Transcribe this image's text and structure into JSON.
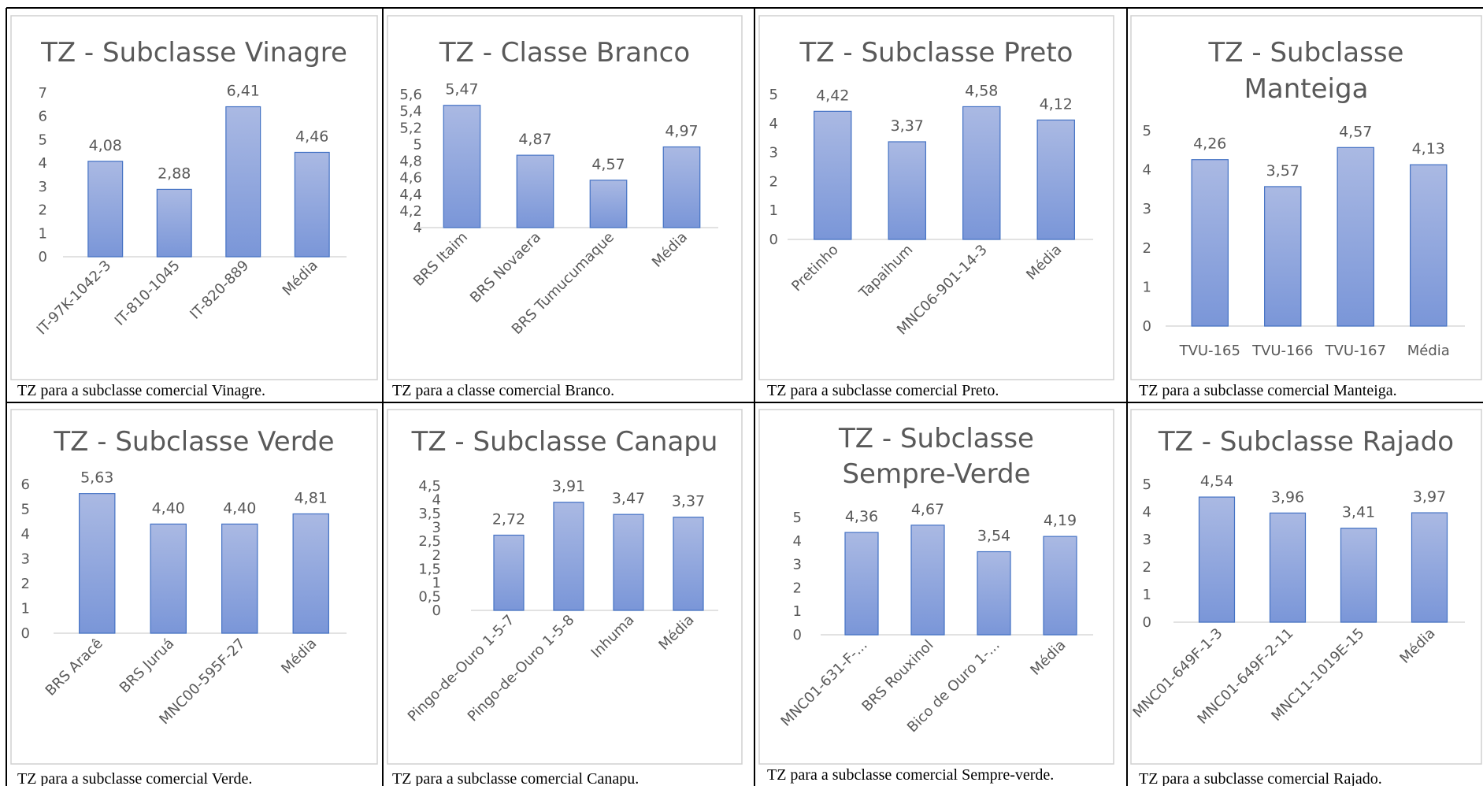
{
  "chart_data": [
    {
      "type": "bar",
      "title_lines": [
        "TZ - Subclasse Vinagre"
      ],
      "categories": [
        "IT-97K-1042-3",
        "IT-810-1045",
        "IT-820-889",
        "Média"
      ],
      "values": [
        4.08,
        2.88,
        6.41,
        4.46
      ],
      "data_labels": [
        "4,08",
        "2,88",
        "6,41",
        "4,46"
      ],
      "ylim": [
        0,
        7
      ],
      "yticks": [
        "0",
        "1",
        "2",
        "3",
        "4",
        "5",
        "6",
        "7"
      ],
      "caption": "TZ para a subclasse comercial Vinagre."
    },
    {
      "type": "bar",
      "title_lines": [
        "TZ - Classe Branco"
      ],
      "categories": [
        "BRS Itaim",
        "BRS Novaera",
        "BRS Tumucumaque",
        "Média"
      ],
      "values": [
        5.47,
        4.87,
        4.57,
        4.97
      ],
      "data_labels": [
        "5,47",
        "4,87",
        "4,57",
        "4,97"
      ],
      "ylim": [
        4,
        5.6
      ],
      "yticks": [
        "4",
        "4,2",
        "4,4",
        "4,6",
        "4,8",
        "5",
        "5,2",
        "5,4",
        "5,6"
      ],
      "caption": "TZ para a classe comercial Branco."
    },
    {
      "type": "bar",
      "title_lines": [
        "TZ - Subclasse Preto"
      ],
      "categories": [
        "Pretinho",
        "Tapaihum",
        "MNC06-901-14-3",
        "Média"
      ],
      "values": [
        4.42,
        3.37,
        4.58,
        4.12
      ],
      "data_labels": [
        "4,42",
        "3,37",
        "4,58",
        "4,12"
      ],
      "ylim": [
        0,
        5
      ],
      "yticks": [
        "0",
        "1",
        "2",
        "3",
        "4",
        "5"
      ],
      "caption": "TZ para a subclasse comercial Preto."
    },
    {
      "type": "bar",
      "title_lines": [
        "TZ - Subclasse",
        "Manteiga"
      ],
      "categories": [
        "TVU-165",
        "TVU-166",
        "TVU-167",
        "Média"
      ],
      "values": [
        4.26,
        3.57,
        4.57,
        4.13
      ],
      "data_labels": [
        "4,26",
        "3,57",
        "4,57",
        "4,13"
      ],
      "ylim": [
        0,
        5
      ],
      "yticks": [
        "0",
        "1",
        "2",
        "3",
        "4",
        "5"
      ],
      "caption": "TZ para a subclasse comercial Manteiga."
    },
    {
      "type": "bar",
      "title_lines": [
        "TZ - Subclasse Verde"
      ],
      "categories": [
        "BRS Aracê",
        "BRS Juruá",
        "MNC00-595F-27",
        "Média"
      ],
      "values": [
        5.63,
        4.4,
        4.4,
        4.81
      ],
      "data_labels": [
        "5,63",
        "4,40",
        "4,40",
        "4,81"
      ],
      "ylim": [
        0,
        6
      ],
      "yticks": [
        "0",
        "1",
        "2",
        "3",
        "4",
        "5",
        "6"
      ],
      "caption": "TZ para a subclasse comercial Verde."
    },
    {
      "type": "bar",
      "title_lines": [
        "TZ - Subclasse Canapu"
      ],
      "categories": [
        "Pingo-de-Ouro 1-5-7",
        "Pingo-de-Ouro 1-5-8",
        "Inhuma",
        "Média"
      ],
      "values": [
        2.72,
        3.91,
        3.47,
        3.37
      ],
      "data_labels": [
        "2,72",
        "3,91",
        "3,47",
        "3,37"
      ],
      "ylim": [
        0,
        4.5
      ],
      "yticks": [
        "0",
        "0,5",
        "1",
        "1,5",
        "2",
        "2,5",
        "3",
        "3,5",
        "4",
        "4,5"
      ],
      "caption": "TZ para a subclasse comercial Canapu."
    },
    {
      "type": "bar",
      "title_lines": [
        "TZ - Subclasse",
        "Sempre-Verde"
      ],
      "categories": [
        "MNC01-631-F-...",
        "BRS Rouxinol",
        "Bico de Ouro 1-...",
        "Média"
      ],
      "values": [
        4.36,
        4.67,
        3.54,
        4.19
      ],
      "data_labels": [
        "4,36",
        "4,67",
        "3,54",
        "4,19"
      ],
      "ylim": [
        0,
        5
      ],
      "yticks": [
        "0",
        "1",
        "2",
        "3",
        "4",
        "5"
      ],
      "caption": "TZ para a subclasse comercial Sempre-verde."
    },
    {
      "type": "bar",
      "title_lines": [
        "TZ - Subclasse Rajado"
      ],
      "categories": [
        "MNC01-649F-1-3",
        "MNC01-649F-2-11",
        "MNC11-1019E-15",
        "Média"
      ],
      "values": [
        4.54,
        3.96,
        3.41,
        3.97
      ],
      "data_labels": [
        "4,54",
        "3,96",
        "3,41",
        "3,97"
      ],
      "ylim": [
        0,
        5
      ],
      "yticks": [
        "0",
        "1",
        "2",
        "3",
        "4",
        "5"
      ],
      "caption": "TZ para a subclasse comercial Rajado."
    }
  ]
}
